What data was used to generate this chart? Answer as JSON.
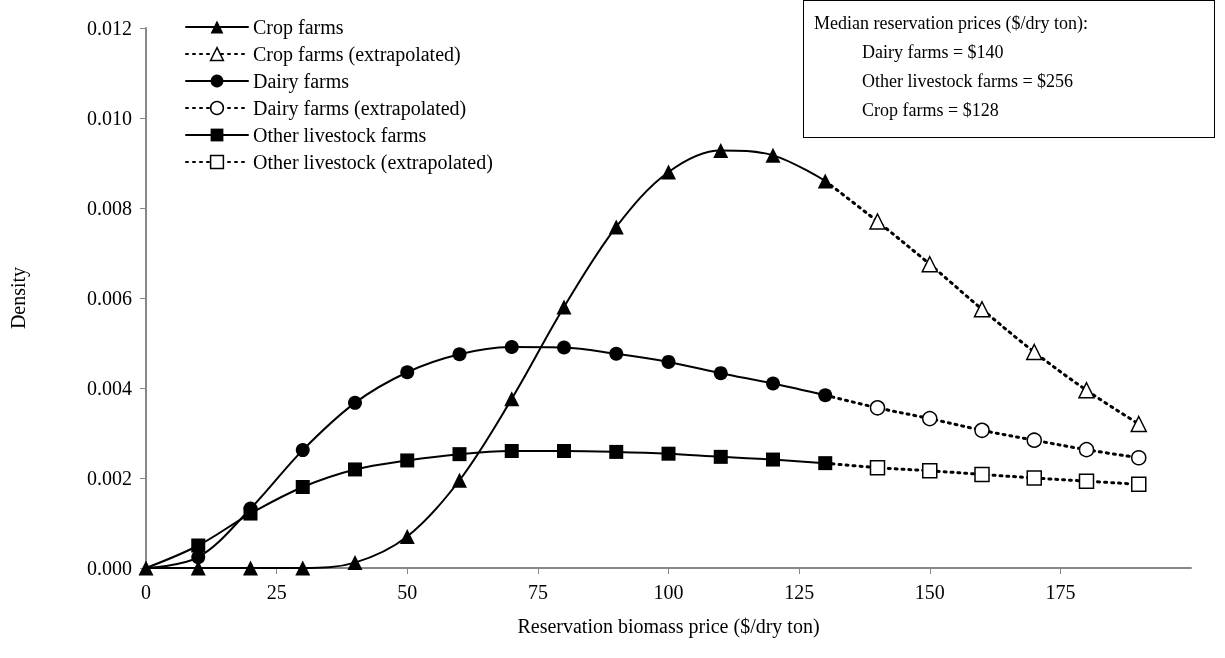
{
  "chart_data": {
    "type": "line",
    "xlabel": "Reservation biomass price ($/dry ton)",
    "ylabel": "Density",
    "xlim": [
      0,
      200
    ],
    "xticks": [
      0,
      25,
      50,
      75,
      100,
      125,
      150,
      175
    ],
    "ylim": [
      0,
      0.012
    ],
    "yticks": [
      {
        "value": 0,
        "label": "0.000"
      },
      {
        "value": 0.002,
        "label": "0.002"
      },
      {
        "value": 0.004,
        "label": "0.004"
      },
      {
        "value": 0.006,
        "label": "0.006"
      },
      {
        "value": 0.008,
        "label": "0.008"
      },
      {
        "value": 0.01,
        "label": "0.010"
      },
      {
        "value": 0.012,
        "label": "0.012"
      }
    ],
    "grid": false,
    "legend": "top left",
    "annotations": [
      "Median reservation prices ($/dry ton):",
      "Dairy farms = $140",
      "Other livestock farms = $256",
      "Crop farms = $128"
    ],
    "series": [
      {
        "name": "Crop farms",
        "color": "#000000",
        "marker": "triangle",
        "line_style": "solid",
        "x": [
          0,
          10,
          20,
          30,
          40,
          50,
          60,
          70,
          80,
          90,
          100,
          110,
          120,
          130
        ],
        "values": [
          0,
          0,
          0,
          0,
          0.00012,
          0.0007,
          0.00195,
          0.00376,
          0.0058,
          0.00758,
          0.0088,
          0.00928,
          0.00917,
          0.0086
        ]
      },
      {
        "name": "Crop farms (extrapolated)",
        "color": "#000000",
        "marker": "triangle",
        "line_style": "dotted",
        "x": [
          130,
          140,
          150,
          160,
          170,
          180,
          190
        ],
        "values": [
          0.0086,
          0.0077,
          0.00675,
          0.00575,
          0.0048,
          0.00395,
          0.0032
        ]
      },
      {
        "name": "Dairy farms",
        "color": "#000000",
        "marker": "circle",
        "line_style": "solid",
        "x": [
          0,
          10,
          20,
          30,
          40,
          50,
          60,
          70,
          80,
          90,
          100,
          110,
          120,
          130
        ],
        "values": [
          0,
          0.00024,
          0.00132,
          0.00262,
          0.00367,
          0.00435,
          0.00475,
          0.00491,
          0.0049,
          0.00476,
          0.00458,
          0.00433,
          0.0041,
          0.00384
        ]
      },
      {
        "name": "Dairy farms (extrapolated)",
        "color": "#000000",
        "marker": "circle",
        "line_style": "dotted",
        "x": [
          130,
          140,
          150,
          160,
          170,
          180,
          190
        ],
        "values": [
          0.00384,
          0.00356,
          0.00332,
          0.00306,
          0.00284,
          0.00263,
          0.00245
        ]
      },
      {
        "name": "Other livestock farms",
        "color": "#000000",
        "marker": "square",
        "line_style": "solid",
        "x": [
          0,
          10,
          20,
          30,
          40,
          50,
          60,
          70,
          80,
          90,
          100,
          110,
          120,
          130
        ],
        "values": [
          0,
          0.0005,
          0.00121,
          0.0018,
          0.00219,
          0.00239,
          0.00253,
          0.0026,
          0.0026,
          0.00258,
          0.00254,
          0.00247,
          0.00241,
          0.00233
        ]
      },
      {
        "name": "Other livestock (extrapolated)",
        "color": "#000000",
        "marker": "square",
        "line_style": "dotted",
        "x": [
          130,
          140,
          150,
          160,
          170,
          180,
          190
        ],
        "values": [
          0.00233,
          0.00223,
          0.00216,
          0.00208,
          0.002,
          0.00193,
          0.00186
        ]
      }
    ]
  }
}
